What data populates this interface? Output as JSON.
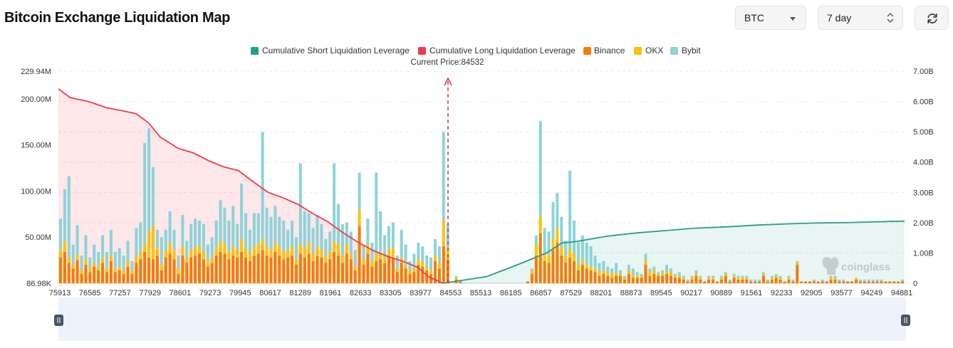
{
  "header": {
    "title": "Bitcoin Exchange Liquidation Map"
  },
  "controls": {
    "coin": {
      "value": "BTC",
      "icon": "chevron-down-icon"
    },
    "range": {
      "value": "7 day",
      "icon": "up-down-icon"
    },
    "refresh": {
      "icon": "refresh-icon"
    }
  },
  "watermark": "coinglass",
  "colors": {
    "short": "#23a187",
    "long": "#f03a4c",
    "binance": "#f57c00",
    "okx": "#ffc107",
    "bybit": "#8dd3d9"
  },
  "chart_data": {
    "type": "bar",
    "legend": [
      "Cumulative Short Liquidation Leverage",
      "Cumulative Long Liquidation Leverage",
      "Binance",
      "OKX",
      "Bybit"
    ],
    "legend_position": "top",
    "current_price_label": "Current Price:84532",
    "current_price": 84532,
    "x_ticks": [
      "75913",
      "76585",
      "77257",
      "77929",
      "78601",
      "79273",
      "79945",
      "80617",
      "81289",
      "81961",
      "82633",
      "83305",
      "83977",
      "84553",
      "85513",
      "86185",
      "86857",
      "87529",
      "88201",
      "88873",
      "89545",
      "90217",
      "90889",
      "91561",
      "92233",
      "92905",
      "93577",
      "94249",
      "94881"
    ],
    "y_left_ticks": [
      "86.98K",
      "50.00M",
      "100.00M",
      "150.00M",
      "200.00M",
      "229.94M"
    ],
    "y_left_values": [
      0.087,
      50,
      100,
      150,
      200,
      229.94
    ],
    "y_left_unit": "M",
    "y_left_range": [
      0,
      229.94
    ],
    "y_right_ticks": [
      "0",
      "1.00B",
      "2.00B",
      "3.00B",
      "4.00B",
      "5.00B",
      "6.00B",
      "7.00B"
    ],
    "y_right_range": [
      0,
      7
    ],
    "y_right_unit": "B",
    "grid": true,
    "series": [
      {
        "name": "Binance",
        "values": [
          28,
          34,
          22,
          16,
          25,
          10,
          20,
          12,
          18,
          14,
          22,
          12,
          24,
          12,
          14,
          10,
          18,
          10,
          22,
          26,
          34,
          28,
          26,
          30,
          14,
          28,
          32,
          26,
          10,
          30,
          22,
          28,
          30,
          32,
          26,
          18,
          22,
          30,
          34,
          32,
          26,
          30,
          28,
          34,
          28,
          24,
          30,
          32,
          36,
          30,
          28,
          34,
          30,
          26,
          28,
          30,
          20,
          32,
          28,
          32,
          24,
          30,
          28,
          22,
          26,
          34,
          30,
          22,
          32,
          26,
          14,
          62,
          20,
          32,
          18,
          24,
          26,
          22,
          30,
          28,
          12,
          22,
          16,
          10,
          12,
          20,
          18,
          14,
          10,
          24,
          16,
          40,
          26,
          0,
          4,
          2,
          0,
          0,
          0,
          0,
          0,
          0,
          0,
          0,
          0,
          0,
          0,
          0,
          0,
          0,
          0,
          2,
          10,
          30,
          54,
          24,
          22,
          36,
          44,
          30,
          22,
          28,
          24,
          14,
          20,
          16,
          14,
          12,
          8,
          10,
          8,
          6,
          8,
          8,
          4,
          10,
          6,
          6,
          6,
          20,
          8,
          10,
          8,
          8,
          10,
          8,
          6,
          6,
          4,
          2,
          4,
          8,
          4,
          2,
          4,
          4,
          2,
          4,
          8,
          2,
          6,
          4,
          4,
          4,
          2,
          2,
          2,
          8,
          2,
          4,
          6,
          4,
          2,
          4,
          2,
          20,
          2,
          2,
          2,
          2,
          2,
          2,
          2,
          4,
          4,
          2,
          2,
          2,
          2,
          4,
          2,
          2,
          2,
          2,
          2,
          2,
          2,
          2,
          2,
          2,
          2
        ]
      },
      {
        "name": "OKX",
        "values": [
          8,
          12,
          6,
          4,
          6,
          4,
          6,
          4,
          4,
          4,
          6,
          4,
          6,
          4,
          4,
          4,
          6,
          4,
          6,
          8,
          8,
          28,
          36,
          8,
          6,
          8,
          12,
          10,
          6,
          10,
          6,
          8,
          10,
          8,
          8,
          6,
          6,
          8,
          12,
          10,
          8,
          10,
          8,
          14,
          10,
          8,
          10,
          10,
          12,
          10,
          8,
          10,
          10,
          8,
          8,
          10,
          6,
          10,
          10,
          12,
          8,
          10,
          8,
          6,
          8,
          12,
          12,
          8,
          10,
          6,
          4,
          18,
          6,
          10,
          6,
          8,
          8,
          6,
          8,
          10,
          4,
          6,
          4,
          4,
          4,
          6,
          6,
          4,
          4,
          6,
          6,
          28,
          12,
          0,
          2,
          0,
          0,
          0,
          0,
          0,
          0,
          0,
          0,
          0,
          0,
          0,
          0,
          0,
          0,
          0,
          0,
          0,
          4,
          12,
          18,
          8,
          8,
          12,
          16,
          10,
          8,
          10,
          8,
          6,
          6,
          4,
          4,
          4,
          4,
          4,
          4,
          4,
          4,
          2,
          2,
          4,
          4,
          2,
          2,
          4,
          4,
          4,
          2,
          2,
          4,
          4,
          2,
          2,
          2,
          0,
          2,
          2,
          2,
          0,
          2,
          2,
          0,
          2,
          2,
          0,
          2,
          2,
          2,
          2,
          0,
          0,
          0,
          2,
          0,
          2,
          2,
          2,
          0,
          2,
          0,
          2,
          0,
          0,
          0,
          0,
          0,
          0,
          0,
          2,
          2,
          0,
          0,
          0,
          0,
          2,
          0,
          0,
          0,
          0,
          0,
          0,
          0,
          0,
          0,
          0,
          0
        ]
      },
      {
        "name": "Bybit",
        "values": [
          34,
          56,
          88,
          22,
          32,
          16,
          26,
          12,
          20,
          16,
          24,
          18,
          28,
          18,
          20,
          16,
          22,
          10,
          32,
          32,
          110,
          112,
          64,
          20,
          30,
          22,
          34,
          22,
          14,
          34,
          18,
          28,
          30,
          28,
          30,
          18,
          22,
          30,
          44,
          40,
          34,
          44,
          28,
          60,
          38,
          26,
          36,
          34,
          116,
          42,
          36,
          40,
          32,
          34,
          22,
          28,
          24,
          88,
          40,
          32,
          28,
          34,
          28,
          20,
          22,
          84,
          44,
          34,
          24,
          24,
          18,
          40,
          16,
          28,
          20,
          88,
          44,
          24,
          24,
          28,
          14,
          30,
          22,
          10,
          16,
          18,
          16,
          12,
          14,
          18,
          18,
          96,
          26,
          0,
          2,
          0,
          0,
          0,
          0,
          0,
          0,
          0,
          0,
          0,
          0,
          0,
          0,
          0,
          0,
          0,
          0,
          0,
          2,
          10,
          104,
          28,
          26,
          40,
          38,
          32,
          16,
          84,
          36,
          24,
          26,
          24,
          22,
          14,
          10,
          10,
          6,
          6,
          10,
          4,
          2,
          6,
          6,
          4,
          2,
          8,
          4,
          4,
          2,
          4,
          6,
          4,
          2,
          4,
          2,
          2,
          2,
          4,
          2,
          0,
          2,
          2,
          0,
          2,
          2,
          2,
          2,
          2,
          2,
          2,
          2,
          2,
          2,
          2,
          2,
          2,
          2,
          2,
          0,
          2,
          2,
          2,
          0,
          0,
          0,
          2,
          0,
          2,
          0,
          2,
          2,
          2,
          2,
          0,
          0,
          0,
          2,
          2,
          2,
          2,
          2,
          2,
          0,
          0,
          0,
          0,
          2
        ]
      }
    ],
    "cumulative_long": {
      "name": "Cumulative Long Liquidation Leverage",
      "unit": "B",
      "points": [
        [
          75913,
          6.42
        ],
        [
          76170,
          6.13
        ],
        [
          76585,
          6.0
        ],
        [
          77000,
          5.79
        ],
        [
          77257,
          5.72
        ],
        [
          77650,
          5.6
        ],
        [
          77929,
          5.3
        ],
        [
          78200,
          4.82
        ],
        [
          78601,
          4.45
        ],
        [
          78940,
          4.3
        ],
        [
          79273,
          4.05
        ],
        [
          79600,
          3.85
        ],
        [
          79945,
          3.72
        ],
        [
          80280,
          3.35
        ],
        [
          80617,
          3.0
        ],
        [
          80950,
          2.82
        ],
        [
          81289,
          2.6
        ],
        [
          81620,
          2.3
        ],
        [
          81961,
          2.02
        ],
        [
          82300,
          1.66
        ],
        [
          82633,
          1.35
        ],
        [
          82970,
          1.08
        ],
        [
          83305,
          0.88
        ],
        [
          83640,
          0.72
        ],
        [
          83977,
          0.52
        ],
        [
          84200,
          0.22
        ],
        [
          84532,
          0.0
        ]
      ]
    },
    "cumulative_short": {
      "name": "Cumulative Short Liquidation Leverage",
      "unit": "B",
      "points": [
        [
          84532,
          0.0
        ],
        [
          85513,
          0.22
        ],
        [
          86185,
          0.6
        ],
        [
          86857,
          1.0
        ],
        [
          87200,
          1.33
        ],
        [
          87529,
          1.38
        ],
        [
          88201,
          1.55
        ],
        [
          88873,
          1.66
        ],
        [
          89545,
          1.74
        ],
        [
          90217,
          1.82
        ],
        [
          90889,
          1.86
        ],
        [
          91561,
          1.92
        ],
        [
          92233,
          1.96
        ],
        [
          92905,
          1.99
        ],
        [
          93577,
          2.0
        ],
        [
          94249,
          2.03
        ],
        [
          94881,
          2.05
        ]
      ]
    },
    "x_range": [
      75913,
      94881
    ]
  }
}
